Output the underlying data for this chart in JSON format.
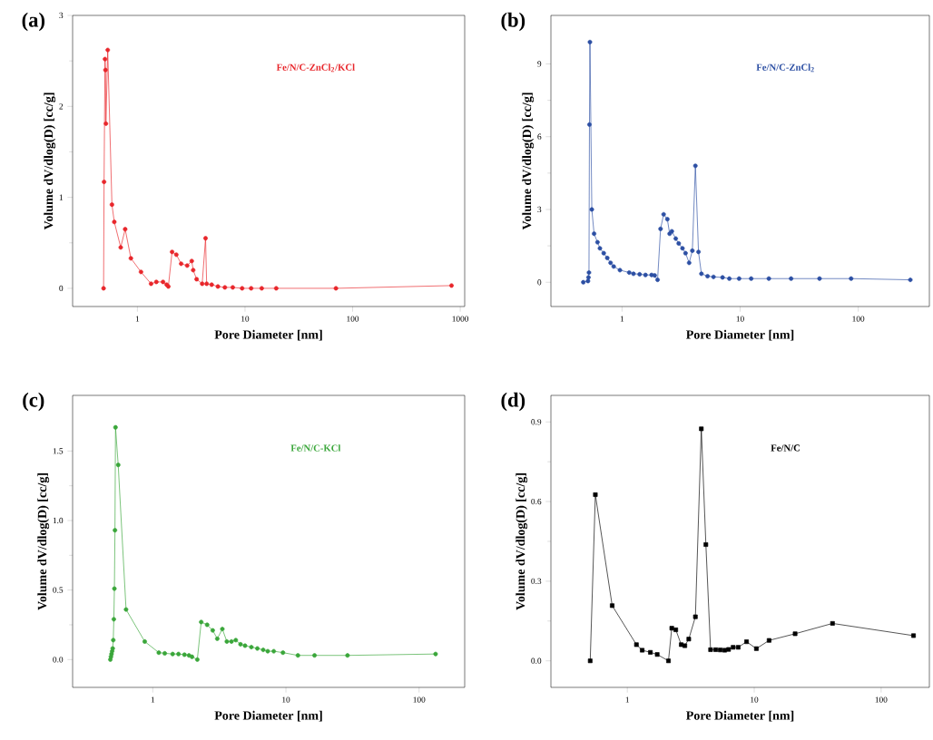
{
  "chart_data": [
    {
      "type": "line",
      "title": "(a)",
      "xlabel": "Pore Diameter [nm]",
      "ylabel": "Volume dV/dlog(D) [cc/g]",
      "log": "x",
      "marker": "circle",
      "xlim": [
        0.25,
        1100
      ],
      "ylim": [
        -0.2,
        3
      ],
      "xticks": [
        1,
        10,
        100,
        1000
      ],
      "yticks": [
        0,
        1,
        2,
        3
      ],
      "series": [
        {
          "name": "Fe/N/C-ZnCl$_{2}$/KCl",
          "color": "#e8262b",
          "x": [
            0.485,
            0.49,
            0.5,
            0.505,
            0.51,
            0.53,
            0.58,
            0.61,
            0.7,
            0.77,
            0.87,
            1.08,
            1.34,
            1.5,
            1.73,
            1.87,
            1.94,
            2.1,
            2.3,
            2.55,
            2.9,
            3.2,
            3.3,
            3.55,
            4.0,
            4.3,
            4.4,
            4.9,
            5.6,
            6.5,
            7.7,
            9.4,
            11.4,
            14.3,
            19.5,
            70,
            830
          ],
          "values": [
            0,
            1.17,
            2.52,
            2.4,
            1.81,
            2.62,
            0.92,
            0.73,
            0.45,
            0.65,
            0.33,
            0.18,
            0.05,
            0.07,
            0.07,
            0.04,
            0.02,
            0.4,
            0.37,
            0.27,
            0.25,
            0.3,
            0.2,
            0.1,
            0.05,
            0.55,
            0.05,
            0.04,
            0.02,
            0.01,
            0.01,
            0,
            0,
            0,
            0,
            0,
            0.03
          ]
        }
      ]
    },
    {
      "type": "line",
      "title": "(b)",
      "xlabel": "Pore Diameter [nm]",
      "ylabel": "Volume dV/dlog(D) [cc/g]",
      "log": "x",
      "marker": "circle",
      "xlim": [
        0.25,
        400
      ],
      "ylim": [
        -1,
        11
      ],
      "xticks": [
        1,
        10,
        100
      ],
      "yticks": [
        0,
        3,
        6,
        9
      ],
      "series": [
        {
          "name": "Fe/N/C-ZnCl$_{2}$",
          "color": "#2c4fa3",
          "x": [
            0.47,
            0.515,
            0.52,
            0.525,
            0.53,
            0.535,
            0.555,
            0.58,
            0.62,
            0.65,
            0.7,
            0.75,
            0.8,
            0.85,
            0.96,
            1.15,
            1.25,
            1.41,
            1.58,
            1.78,
            1.89,
            2.0,
            2.12,
            2.25,
            2.42,
            2.53,
            2.64,
            2.85,
            3.02,
            3.25,
            3.45,
            3.7,
            3.94,
            4.18,
            4.44,
            4.7,
            5.3,
            5.95,
            7.1,
            8.1,
            9.8,
            12.4,
            17.5,
            27,
            47,
            87,
            276
          ],
          "values": [
            0,
            0.05,
            0.2,
            0.4,
            6.5,
            9.9,
            3.0,
            2.0,
            1.65,
            1.4,
            1.2,
            1.0,
            0.8,
            0.65,
            0.5,
            0.4,
            0.35,
            0.33,
            0.3,
            0.3,
            0.28,
            0.1,
            2.2,
            2.8,
            2.6,
            2.0,
            2.1,
            1.8,
            1.6,
            1.4,
            1.2,
            0.8,
            1.3,
            4.8,
            1.25,
            0.35,
            0.25,
            0.22,
            0.2,
            0.15,
            0.15,
            0.15,
            0.15,
            0.15,
            0.15,
            0.15,
            0.1
          ]
        }
      ]
    },
    {
      "type": "line",
      "title": "(c)",
      "xlabel": "Pore Diameter [nm]",
      "ylabel": "Volume dV/dlog(D) [cc/g]",
      "log": "x",
      "marker": "circle",
      "xlim": [
        0.25,
        220
      ],
      "ylim": [
        -0.2,
        1.9
      ],
      "xticks": [
        1,
        10,
        100
      ],
      "yticks": [
        {
          "value": 0,
          "label": "0.0"
        },
        {
          "value": 0.5,
          "label": "0.5"
        },
        {
          "value": 1,
          "label": "1.0"
        },
        {
          "value": 1.5,
          "label": "1.5"
        }
      ],
      "series": [
        {
          "name": "Fe/N/C-KCl",
          "color": "#3aa63a",
          "x": [
            0.48,
            0.485,
            0.49,
            0.495,
            0.5,
            0.505,
            0.51,
            0.515,
            0.52,
            0.525,
            0.55,
            0.63,
            0.87,
            1.11,
            1.23,
            1.41,
            1.56,
            1.73,
            1.87,
            1.97,
            2.16,
            2.31,
            2.56,
            2.82,
            3.05,
            3.33,
            3.6,
            3.9,
            4.2,
            4.56,
            4.93,
            5.5,
            6.1,
            6.75,
            7.3,
            8.1,
            9.5,
            12.3,
            16.4,
            29,
            133
          ],
          "values": [
            0,
            0.02,
            0.04,
            0.06,
            0.08,
            0.14,
            0.29,
            0.51,
            0.93,
            1.67,
            1.4,
            0.36,
            0.13,
            0.05,
            0.045,
            0.04,
            0.04,
            0.035,
            0.03,
            0.02,
            0,
            0.27,
            0.25,
            0.21,
            0.15,
            0.22,
            0.13,
            0.13,
            0.14,
            0.11,
            0.1,
            0.09,
            0.08,
            0.07,
            0.06,
            0.06,
            0.05,
            0.03,
            0.03,
            0.03,
            0.04
          ]
        }
      ]
    },
    {
      "type": "line",
      "title": "(d)",
      "xlabel": "Pore Diameter [nm]",
      "ylabel": "Volume dV/dlog(D) [cc/g]",
      "log": "x",
      "marker": "square",
      "xlim": [
        0.25,
        240
      ],
      "ylim": [
        -0.1,
        1.0
      ],
      "xticks": [
        1,
        10,
        100
      ],
      "yticks": [
        {
          "value": 0,
          "label": "0.0"
        },
        {
          "value": 0.3,
          "label": "0.3"
        },
        {
          "value": 0.6,
          "label": "0.6"
        },
        {
          "value": 0.9,
          "label": "0.9"
        }
      ],
      "series": [
        {
          "name": "Fe/N/C",
          "color": "#000000",
          "x": [
            0.51,
            0.56,
            0.76,
            1.18,
            1.31,
            1.52,
            1.72,
            2.11,
            2.24,
            2.41,
            2.66,
            2.84,
            3.05,
            3.44,
            3.83,
            4.16,
            4.53,
            4.97,
            5.4,
            5.85,
            6.28,
            6.82,
            7.48,
            8.7,
            10.4,
            13.1,
            21,
            41.4,
            180
          ],
          "values": [
            0,
            0.626,
            0.208,
            0.061,
            0.04,
            0.032,
            0.024,
            0,
            0.123,
            0.117,
            0.061,
            0.057,
            0.082,
            0.166,
            0.874,
            0.438,
            0.042,
            0.042,
            0.041,
            0.04,
            0.043,
            0.051,
            0.051,
            0.072,
            0.046,
            0.077,
            0.102,
            0.141,
            0.095
          ]
        }
      ]
    }
  ]
}
